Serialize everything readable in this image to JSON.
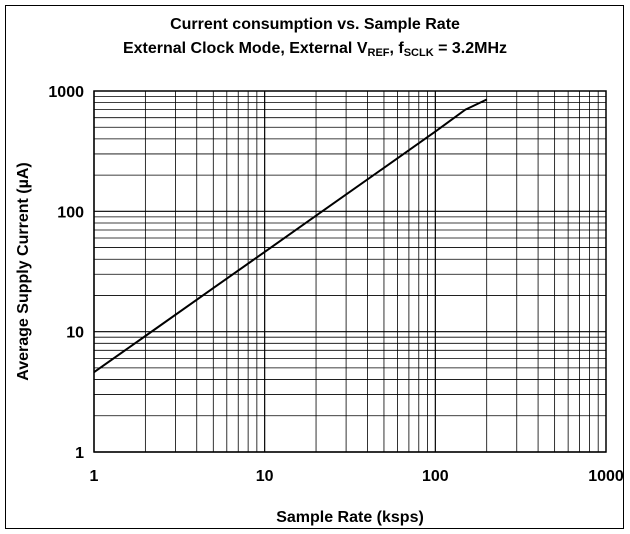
{
  "chart_data": {
    "type": "line",
    "title_line1": "Current consumption vs. Sample Rate",
    "title_line2_parts": [
      "External Clock Mode, External V",
      "REF",
      ", f",
      "SCLK",
      " = 3.2MHz"
    ],
    "xlabel": "Sample Rate (ksps)",
    "ylabel": "Average Supply Current (µA)",
    "x_scale": "log",
    "y_scale": "log",
    "xlim": [
      1,
      1000
    ],
    "ylim": [
      1,
      1000
    ],
    "x_ticks": [
      "1",
      "10",
      "100",
      "1000"
    ],
    "y_ticks": [
      "1",
      "10",
      "100",
      "1000"
    ],
    "grid": "on (major and minor)",
    "series": [
      {
        "x": [
          1,
          2,
          5,
          10,
          20,
          50,
          100,
          150,
          160,
          200
        ],
        "y": [
          4.6,
          9.2,
          23,
          46,
          92,
          230,
          460,
          700,
          730,
          850
        ]
      }
    ]
  }
}
